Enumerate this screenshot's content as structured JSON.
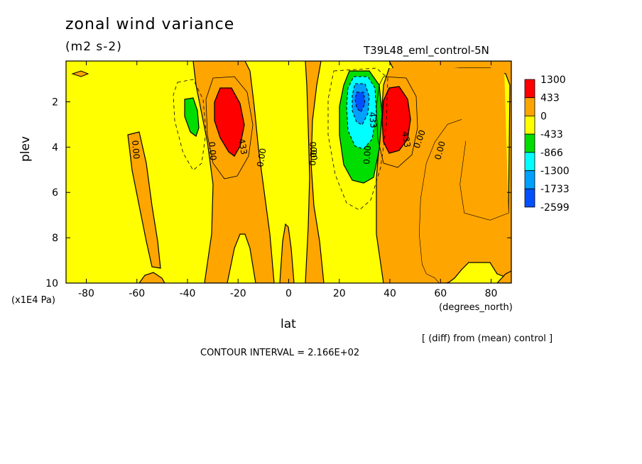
{
  "title": "zonal wind variance",
  "units": "(m2 s-2)",
  "run_label": "T39L48_eml_control-5N",
  "diff_note": "[ (diff) from (mean) control ]",
  "contour_interval": "CONTOUR INTERVAL = 2.166E+02",
  "y_unit_label": "(x1E4 Pa)",
  "x_unit_label": "(degrees_north)",
  "chart_data": {
    "type": "heatmap",
    "title": "zonal wind variance",
    "xlabel": "lat",
    "ylabel": "plev",
    "xlim": [
      -88,
      88
    ],
    "ylim": [
      10,
      0.2
    ],
    "x_ticks": [
      -80,
      -60,
      -40,
      -20,
      0,
      20,
      40,
      60,
      80
    ],
    "x_tick_labels": [
      "-80",
      "-60",
      "-40",
      "-20",
      "0",
      "20",
      "40",
      "60",
      "80"
    ],
    "y_ticks": [
      2,
      4,
      6,
      8,
      10
    ],
    "y_tick_labels": [
      "2",
      "4",
      "6",
      "8",
      "10"
    ],
    "colorbar": {
      "levels": [
        "1300",
        "433",
        "0",
        "-433",
        "-866",
        "-1300",
        "-1733",
        "-2599"
      ],
      "colors": [
        "#ff0000",
        "#ffa500",
        "#ffff00",
        "#00dd00",
        "#00ffff",
        "#00a0ff",
        "#0050ff"
      ]
    },
    "contour_labels": [
      "433",
      "0.00",
      "0.00",
      "0.00",
      "0.00",
      "0.00",
      "0.00",
      "433",
      "433",
      "0.00",
      "0.00"
    ],
    "features": [
      {
        "name": "positive max SH",
        "lat": -26,
        "plev": 2.5,
        "level": 1300
      },
      {
        "name": "negative min SH",
        "lat": -44,
        "plev": 2.5,
        "level": -866
      },
      {
        "name": "negative min NH",
        "lat": 27,
        "plev": 2.0,
        "level": -2599
      },
      {
        "name": "positive max NH",
        "lat": 42,
        "plev": 2.6,
        "level": 1300
      }
    ]
  }
}
